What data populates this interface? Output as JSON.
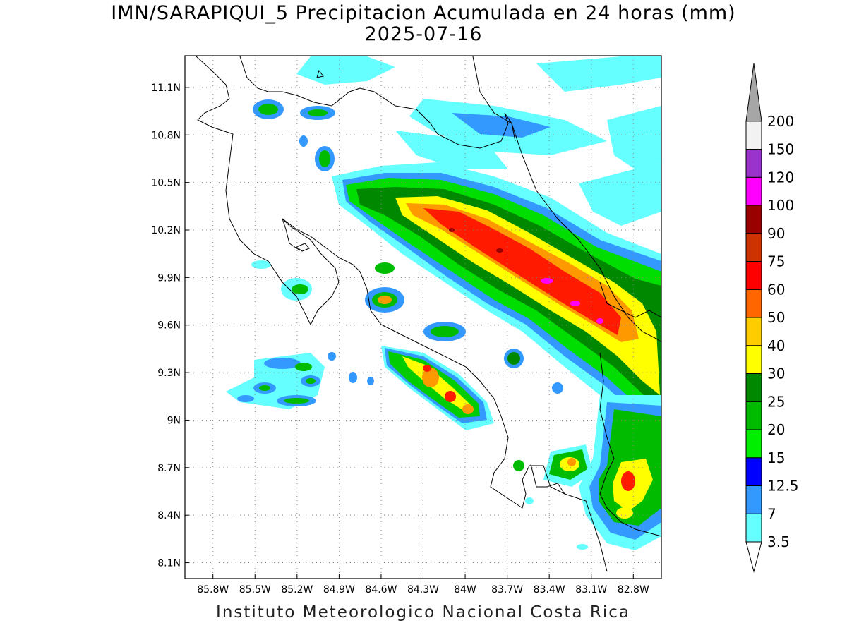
{
  "title": {
    "line1": "IMN/SARAPIQUI_5 Precipitacion Acumulada en 24 horas (mm)",
    "line2": "2025-07-16"
  },
  "footer": "Instituto Meteorologico Nacional Costa Rica",
  "map": {
    "lon_range": [
      -86.0,
      -82.6
    ],
    "lat_range": [
      8.0,
      11.3
    ],
    "lon_ticks": [
      "85.8W",
      "85.5W",
      "85.2W",
      "84.9W",
      "84.6W",
      "84.3W",
      "84W",
      "83.7W",
      "83.4W",
      "83.1W",
      "82.8W"
    ],
    "lat_ticks": [
      "11.1N",
      "10.8N",
      "10.5N",
      "10.2N",
      "9.9N",
      "9.6N",
      "9.3N",
      "9N",
      "8.7N",
      "8.4N",
      "8.1N"
    ],
    "grid": "dotted"
  },
  "colorbar": {
    "labels": [
      "3.5",
      "7",
      "12.5",
      "15",
      "20",
      "25",
      "30",
      "40",
      "50",
      "60",
      "75",
      "90",
      "100",
      "120",
      "150",
      "200"
    ],
    "colors": [
      "#66ffff",
      "#3399ff",
      "#0000ff",
      "#00ee00",
      "#00bb00",
      "#008800",
      "#ffff00",
      "#ffcc00",
      "#ff6600",
      "#ff0000",
      "#cc3300",
      "#990000",
      "#ff00ff",
      "#9933cc",
      "#f2f2f2",
      "#a6a6a6"
    ]
  }
}
